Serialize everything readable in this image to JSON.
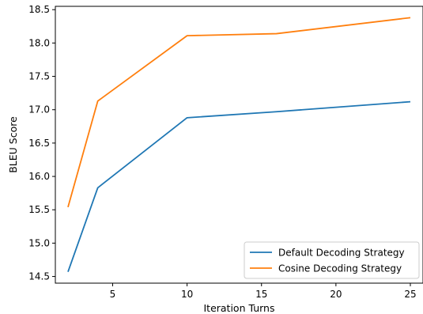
{
  "chart_data": {
    "type": "line",
    "xlabel": "Iteration Turns",
    "ylabel": "BLEU Score",
    "xlim": [
      1.15,
      25.85
    ],
    "ylim": [
      14.4,
      18.55
    ],
    "xticks": [
      5,
      10,
      15,
      20,
      25
    ],
    "yticks": [
      14.5,
      15.0,
      15.5,
      16.0,
      16.5,
      17.0,
      17.5,
      18.0,
      18.5
    ],
    "xtick_labels": [
      "5",
      "10",
      "15",
      "20",
      "25"
    ],
    "ytick_labels": [
      "14.5",
      "15.0",
      "15.5",
      "16.0",
      "16.5",
      "17.0",
      "17.5",
      "18.0",
      "18.5"
    ],
    "x": [
      2,
      4,
      10,
      16,
      25
    ],
    "series": [
      {
        "name": "Default Decoding Strategy",
        "values": [
          14.57,
          15.83,
          16.88,
          16.97,
          17.12
        ],
        "color": "#1f77b4"
      },
      {
        "name": "Cosine Decoding Strategy",
        "values": [
          15.54,
          17.13,
          18.11,
          18.14,
          18.38
        ],
        "color": "#ff7f0e"
      }
    ],
    "legend_position": "lower-right",
    "grid": false
  }
}
